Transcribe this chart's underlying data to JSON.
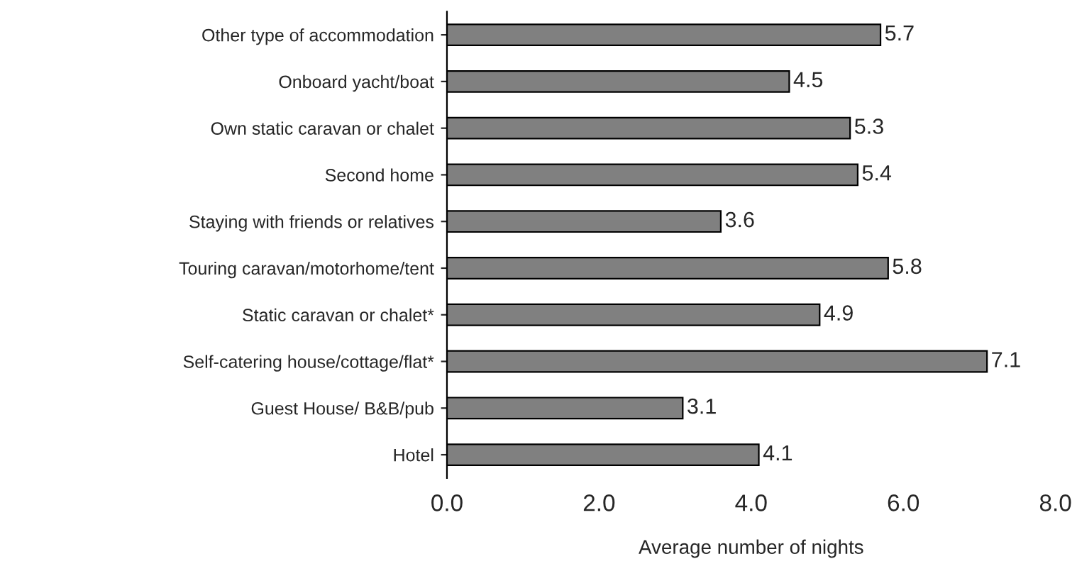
{
  "chart_data": {
    "type": "bar",
    "orientation": "horizontal",
    "xlabel": "Average number of nights",
    "categories": [
      "Other type of accommodation",
      "Onboard yacht/boat",
      "Own static caravan or chalet",
      "Second home",
      "Staying with friends or relatives",
      "Touring caravan/motorhome/tent",
      "Static caravan or chalet*",
      "Self-catering house/cottage/flat*",
      "Guest House/ B&B/pub",
      "Hotel"
    ],
    "values": [
      5.7,
      4.5,
      5.3,
      5.4,
      3.6,
      5.8,
      4.9,
      7.1,
      3.1,
      4.1
    ],
    "value_labels": [
      "5.7",
      "4.5",
      "5.3",
      "5.4",
      "3.6",
      "5.8",
      "4.9",
      "7.1",
      "3.1",
      "4.1"
    ],
    "color": "#808080",
    "xlim": [
      0,
      8
    ],
    "xticks": [
      {
        "value": 0,
        "label": "0.0"
      },
      {
        "value": 2,
        "label": "2.0"
      },
      {
        "value": 4,
        "label": "4.0"
      },
      {
        "value": 6,
        "label": "6.0"
      },
      {
        "value": 8,
        "label": "8.0"
      }
    ]
  }
}
